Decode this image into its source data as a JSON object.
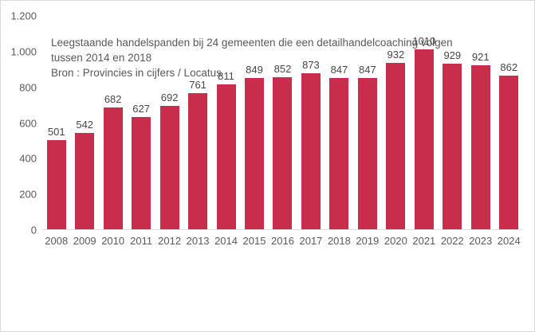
{
  "chart_data": {
    "type": "bar",
    "categories": [
      "2008",
      "2009",
      "2010",
      "2011",
      "2012",
      "2013",
      "2014",
      "2015",
      "2016",
      "2017",
      "2018",
      "2019",
      "2020",
      "2021",
      "2022",
      "2023",
      "2024"
    ],
    "values": [
      501,
      542,
      682,
      627,
      692,
      761,
      811,
      849,
      852,
      873,
      847,
      847,
      932,
      1010,
      929,
      921,
      862
    ],
    "title": "",
    "xlabel": "",
    "ylabel": "",
    "ylim": [
      0,
      1200
    ],
    "yticks": [
      0,
      200,
      400,
      600,
      800,
      1000,
      1200
    ],
    "ytick_labels": [
      "0",
      "200",
      "400",
      "600",
      "800",
      "1.000",
      "1.200"
    ],
    "grid": false,
    "legend": false,
    "data_labels": true,
    "caption_line1": "Leegstaande handelspanden bij 24 gemeenten die een detailhandelcoaching volgen",
    "caption_line2": "tussen 2014 en 2018",
    "source": "Bron : Provincies in cijfers / Locatus"
  },
  "colors": {
    "bar": "#C82D4B",
    "axis_text": "#595959",
    "value_text": "#464646",
    "axis_line": "#D9D9D9",
    "border": "#D9D9D9"
  }
}
